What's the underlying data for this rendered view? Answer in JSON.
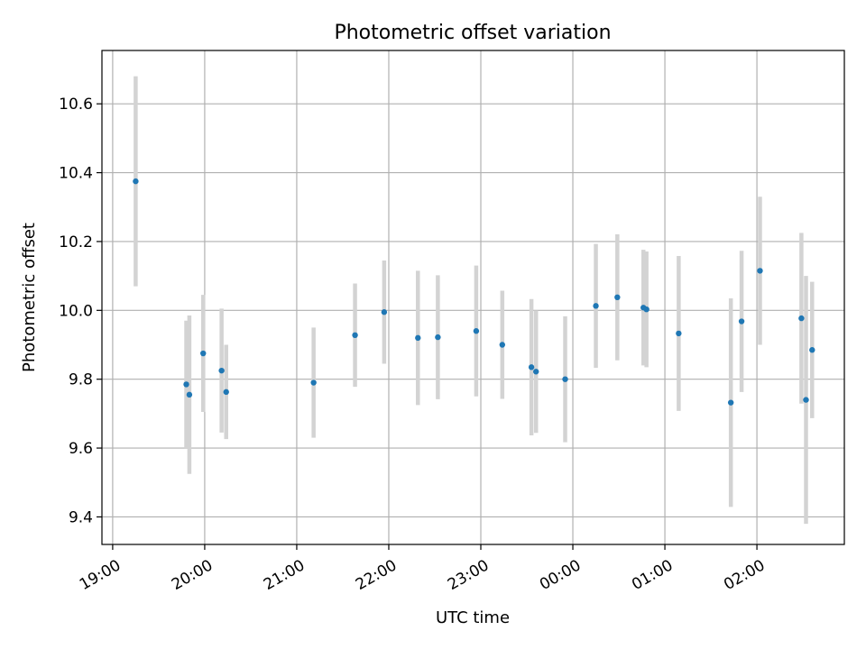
{
  "chart_data": {
    "type": "scatter",
    "title": "Photometric offset variation",
    "xlabel": "UTC time",
    "ylabel": "Photometric offset",
    "x_axis": "time",
    "x_tick_labels": [
      "19:00",
      "20:00",
      "21:00",
      "22:00",
      "23:00",
      "00:00",
      "01:00",
      "02:00"
    ],
    "y_ticks": [
      9.4,
      9.6,
      9.8,
      10.0,
      10.2,
      10.4,
      10.6
    ],
    "y_tick_labels": [
      "9.4",
      "9.6",
      "9.8",
      "10.0",
      "10.2",
      "10.4",
      "10.6"
    ],
    "xlim": [
      "18:53",
      "02:57"
    ],
    "ylim": [
      9.32,
      10.755
    ],
    "grid": true,
    "colors": {
      "point": "#1f77b4",
      "errorbar": "#d3d3d3",
      "grid": "#b0b0b0"
    },
    "points": [
      {
        "t": "19:15",
        "y": 10.375,
        "err": 0.305
      },
      {
        "t": "19:48",
        "y": 9.785,
        "err": 0.185
      },
      {
        "t": "19:50",
        "y": 9.755,
        "err": 0.23
      },
      {
        "t": "19:59",
        "y": 9.875,
        "err": 0.17
      },
      {
        "t": "20:11",
        "y": 9.825,
        "err": 0.18
      },
      {
        "t": "20:14",
        "y": 9.763,
        "err": 0.137
      },
      {
        "t": "21:11",
        "y": 9.79,
        "err": 0.16
      },
      {
        "t": "21:38",
        "y": 9.928,
        "err": 0.15
      },
      {
        "t": "21:57",
        "y": 9.995,
        "err": 0.15
      },
      {
        "t": "22:19",
        "y": 9.92,
        "err": 0.195
      },
      {
        "t": "22:32",
        "y": 9.922,
        "err": 0.18
      },
      {
        "t": "22:57",
        "y": 9.94,
        "err": 0.19
      },
      {
        "t": "23:14",
        "y": 9.9,
        "err": 0.157
      },
      {
        "t": "23:33",
        "y": 9.835,
        "err": 0.198
      },
      {
        "t": "23:36",
        "y": 9.822,
        "err": 0.178
      },
      {
        "t": "23:55",
        "y": 9.8,
        "err": 0.183
      },
      {
        "t": "00:15",
        "y": 10.013,
        "err": 0.18
      },
      {
        "t": "00:29",
        "y": 10.038,
        "err": 0.183
      },
      {
        "t": "00:46",
        "y": 10.008,
        "err": 0.168
      },
      {
        "t": "00:48",
        "y": 10.003,
        "err": 0.168
      },
      {
        "t": "01:09",
        "y": 9.933,
        "err": 0.225
      },
      {
        "t": "01:43",
        "y": 9.732,
        "err": 0.303
      },
      {
        "t": "01:50",
        "y": 9.968,
        "err": 0.205
      },
      {
        "t": "02:02",
        "y": 10.115,
        "err": 0.215
      },
      {
        "t": "02:29",
        "y": 9.977,
        "err": 0.248
      },
      {
        "t": "02:32",
        "y": 9.74,
        "err": 0.36
      },
      {
        "t": "02:36",
        "y": 9.885,
        "err": 0.198
      }
    ]
  }
}
